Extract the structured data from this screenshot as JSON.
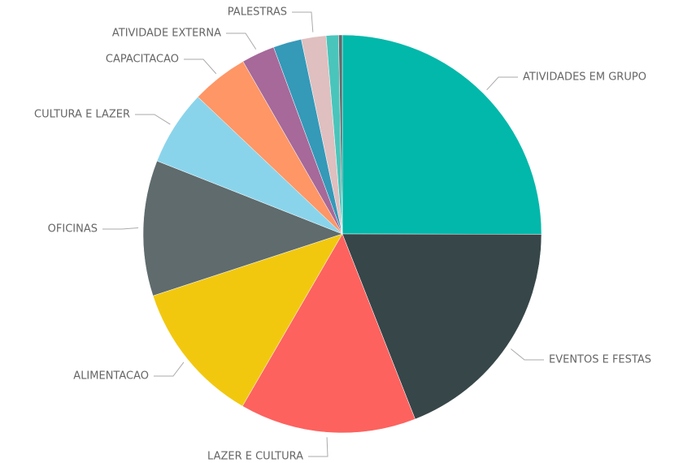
{
  "chart_data": {
    "type": "pie",
    "categories": [
      "ATIVIDADES EM GRUPO",
      "EVENTOS E FESTAS",
      "LAZER E CULTURA",
      "ALIMENTACAO",
      "OFICINAS",
      "CULTURA E LAZER",
      "CAPACITACAO",
      "ATIVIDADE EXTERNA",
      null,
      "PALESTRAS",
      null,
      null
    ],
    "values": [
      25,
      19,
      14.3,
      11.6,
      11,
      6.1,
      4.6,
      2.7,
      2.3,
      2,
      1,
      0.3
    ],
    "colors": [
      "#01B8AA",
      "#374649",
      "#FD625E",
      "#F2C80F",
      "#5F6B6D",
      "#8AD4EB",
      "#FE9666",
      "#A66999",
      "#3599B8",
      "#DFBFBF",
      "#4AC5BB",
      "#5F6B6D"
    ]
  }
}
